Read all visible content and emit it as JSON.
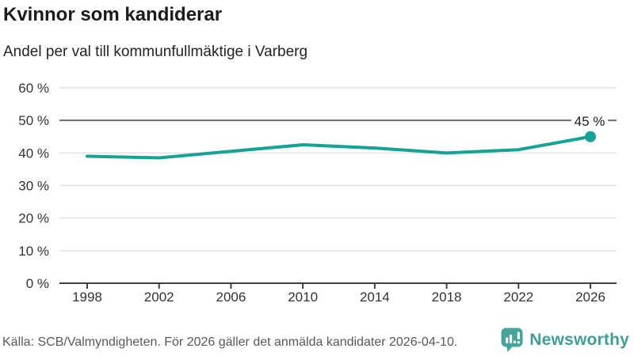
{
  "header": {
    "title": "Kvinnor som kandiderar",
    "subtitle": "Andel per val till kommunfullmäktige i Varberg"
  },
  "chart_data": {
    "type": "line",
    "title": "Kvinnor som kandiderar",
    "subtitle": "Andel per val till kommunfullmäktige i Varberg",
    "categories": [
      "1998",
      "2002",
      "2006",
      "2010",
      "2014",
      "2018",
      "2022",
      "2026"
    ],
    "values": [
      39,
      38.5,
      40.5,
      42.5,
      41.5,
      40,
      41,
      45
    ],
    "xlabel": "",
    "ylabel": "",
    "ylim": [
      0,
      60
    ],
    "ytick_step": 10,
    "ytick_suffix": " %",
    "grid": true,
    "reference_line": 50,
    "end_label": "45 %",
    "legend": "none"
  },
  "colors": {
    "line": "#16a294",
    "grid": "#e1e1e1",
    "reference_line": "#6d6d6d",
    "axis": "#3f3f3f",
    "axis_text": "#333333",
    "end_label_text": "#1a1a1a",
    "footer_text": "#57585a",
    "brand_teal": "#3f9e95",
    "brand_icon_teal": "#47a49b"
  },
  "footer": {
    "source": "Källa: SCB/Valmyndigheten. För 2026 gäller det anmälda kandidater 2026-04-10.",
    "brand": "Newsworthy"
  },
  "icons": {
    "brand_icon": "newsworthy-speech-bubble-bar-chart-icon"
  }
}
